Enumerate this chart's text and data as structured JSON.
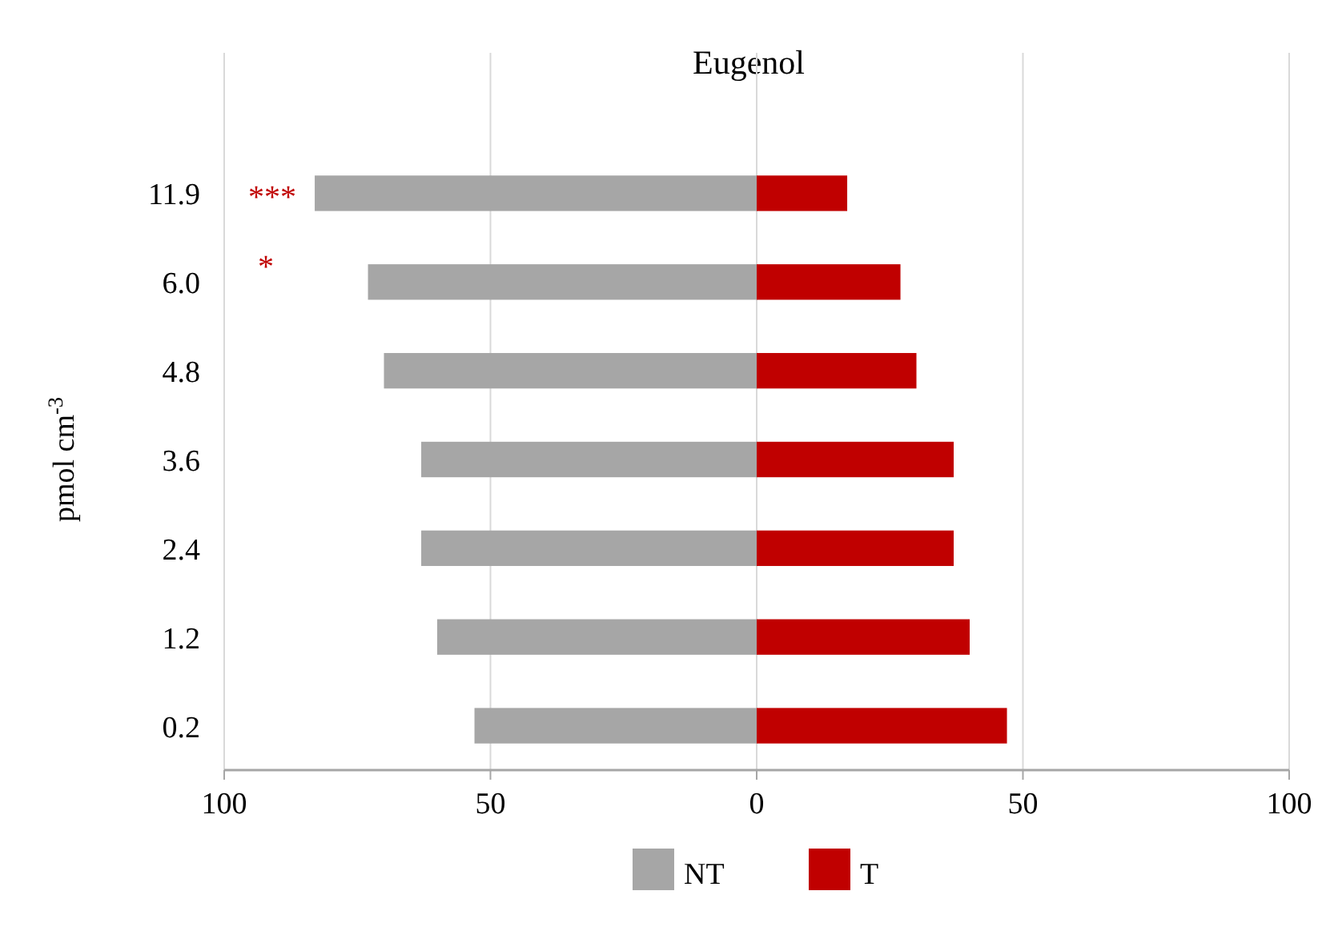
{
  "chart_data": {
    "type": "bar",
    "title": "Eugenol",
    "ylabel": "pmol cm$^{-3}$",
    "orientation": "horizontal",
    "stacked": true,
    "categories": [
      "11.9",
      "6.0",
      "4.8",
      "3.6",
      "2.4",
      "1.2",
      "0.2"
    ],
    "series": [
      {
        "name": "NT",
        "color": "#a6a6a6",
        "values": [
          -83,
          -73,
          -70,
          -63,
          -63,
          -60,
          -53
        ]
      },
      {
        "name": "T",
        "color": "#c00000",
        "values": [
          17,
          27,
          30,
          37,
          37,
          40,
          47
        ]
      }
    ],
    "xlim": [
      -100,
      100
    ],
    "xticks": [
      {
        "value": -100,
        "label": "100"
      },
      {
        "value": -50,
        "label": "50"
      },
      0,
      50,
      100
    ],
    "grid": "x",
    "legend": "bottom",
    "annotations": [
      "***",
      "*"
    ]
  }
}
